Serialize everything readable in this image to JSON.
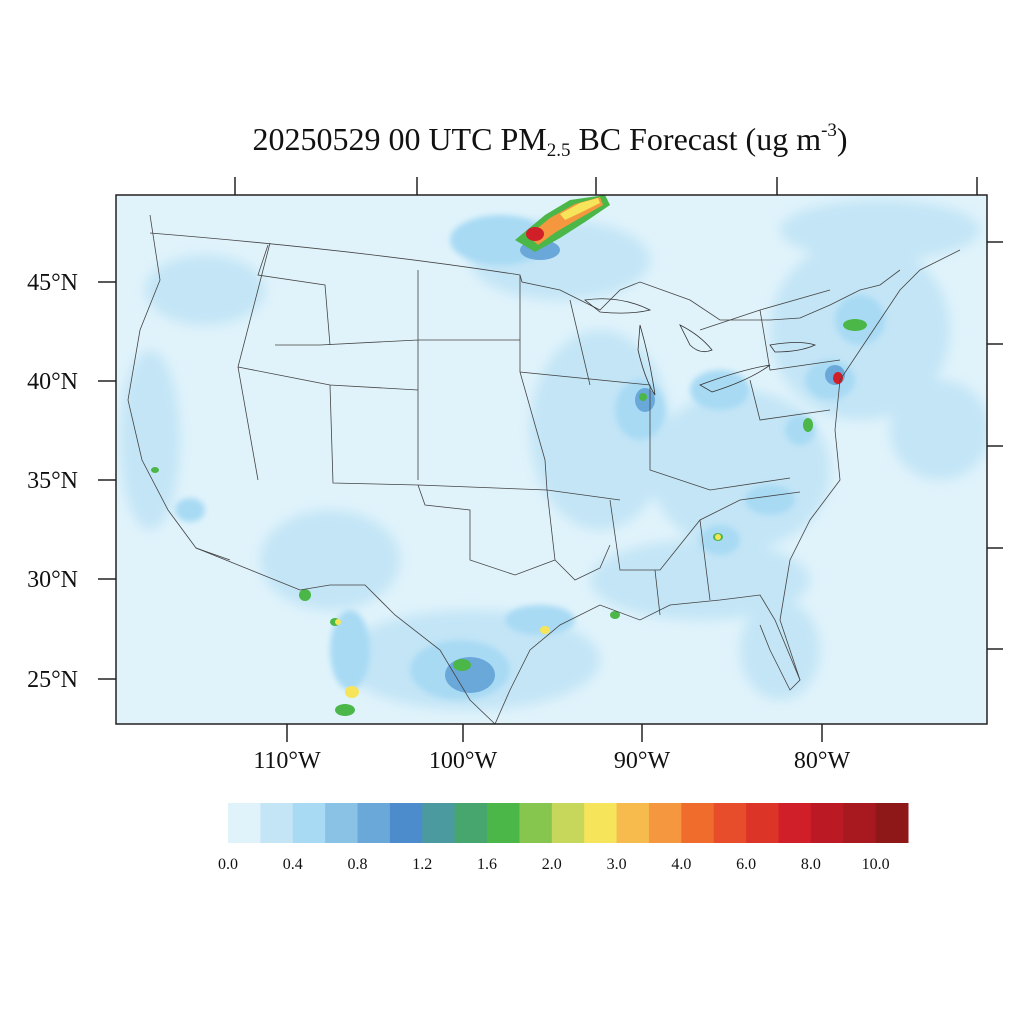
{
  "title": {
    "prefix": "20250529 00 UTC PM",
    "subscript": "2.5",
    "middle": " BC Forecast (ug m",
    "superscript": "-3",
    "suffix": ")"
  },
  "axes": {
    "lat_labels": [
      "45°N",
      "40°N",
      "35°N",
      "30°N",
      "25°N"
    ],
    "lon_labels": [
      "110°W",
      "100°W",
      "90°W",
      "80°W"
    ]
  },
  "colorbar": {
    "colors": [
      "#e0f3fb",
      "#c3e5f6",
      "#a8daf4",
      "#89c2e5",
      "#6aa8da",
      "#4d8ccc",
      "#4a9aa0",
      "#47a56e",
      "#4ab748",
      "#86c54e",
      "#c7d75b",
      "#f6e45a",
      "#f7bb4d",
      "#f4973e",
      "#f06c2d",
      "#e74d2a",
      "#dc3527",
      "#d01f29",
      "#bb1a24",
      "#a8191f",
      "#8e1717"
    ],
    "labels": [
      "0.0",
      "0.4",
      "0.8",
      "1.2",
      "1.6",
      "2.0",
      "3.0",
      "4.0",
      "6.0",
      "8.0",
      "10.0"
    ]
  },
  "map_colors": {
    "background": "#e0f3fb",
    "light": "#c3e5f6",
    "medium": "#a8daf4",
    "strong": "#89c2e5",
    "heavy": "#6aa8da",
    "green": "#4ab748",
    "yellow": "#f6e45a",
    "orange": "#f4973e",
    "red": "#d01f29"
  }
}
